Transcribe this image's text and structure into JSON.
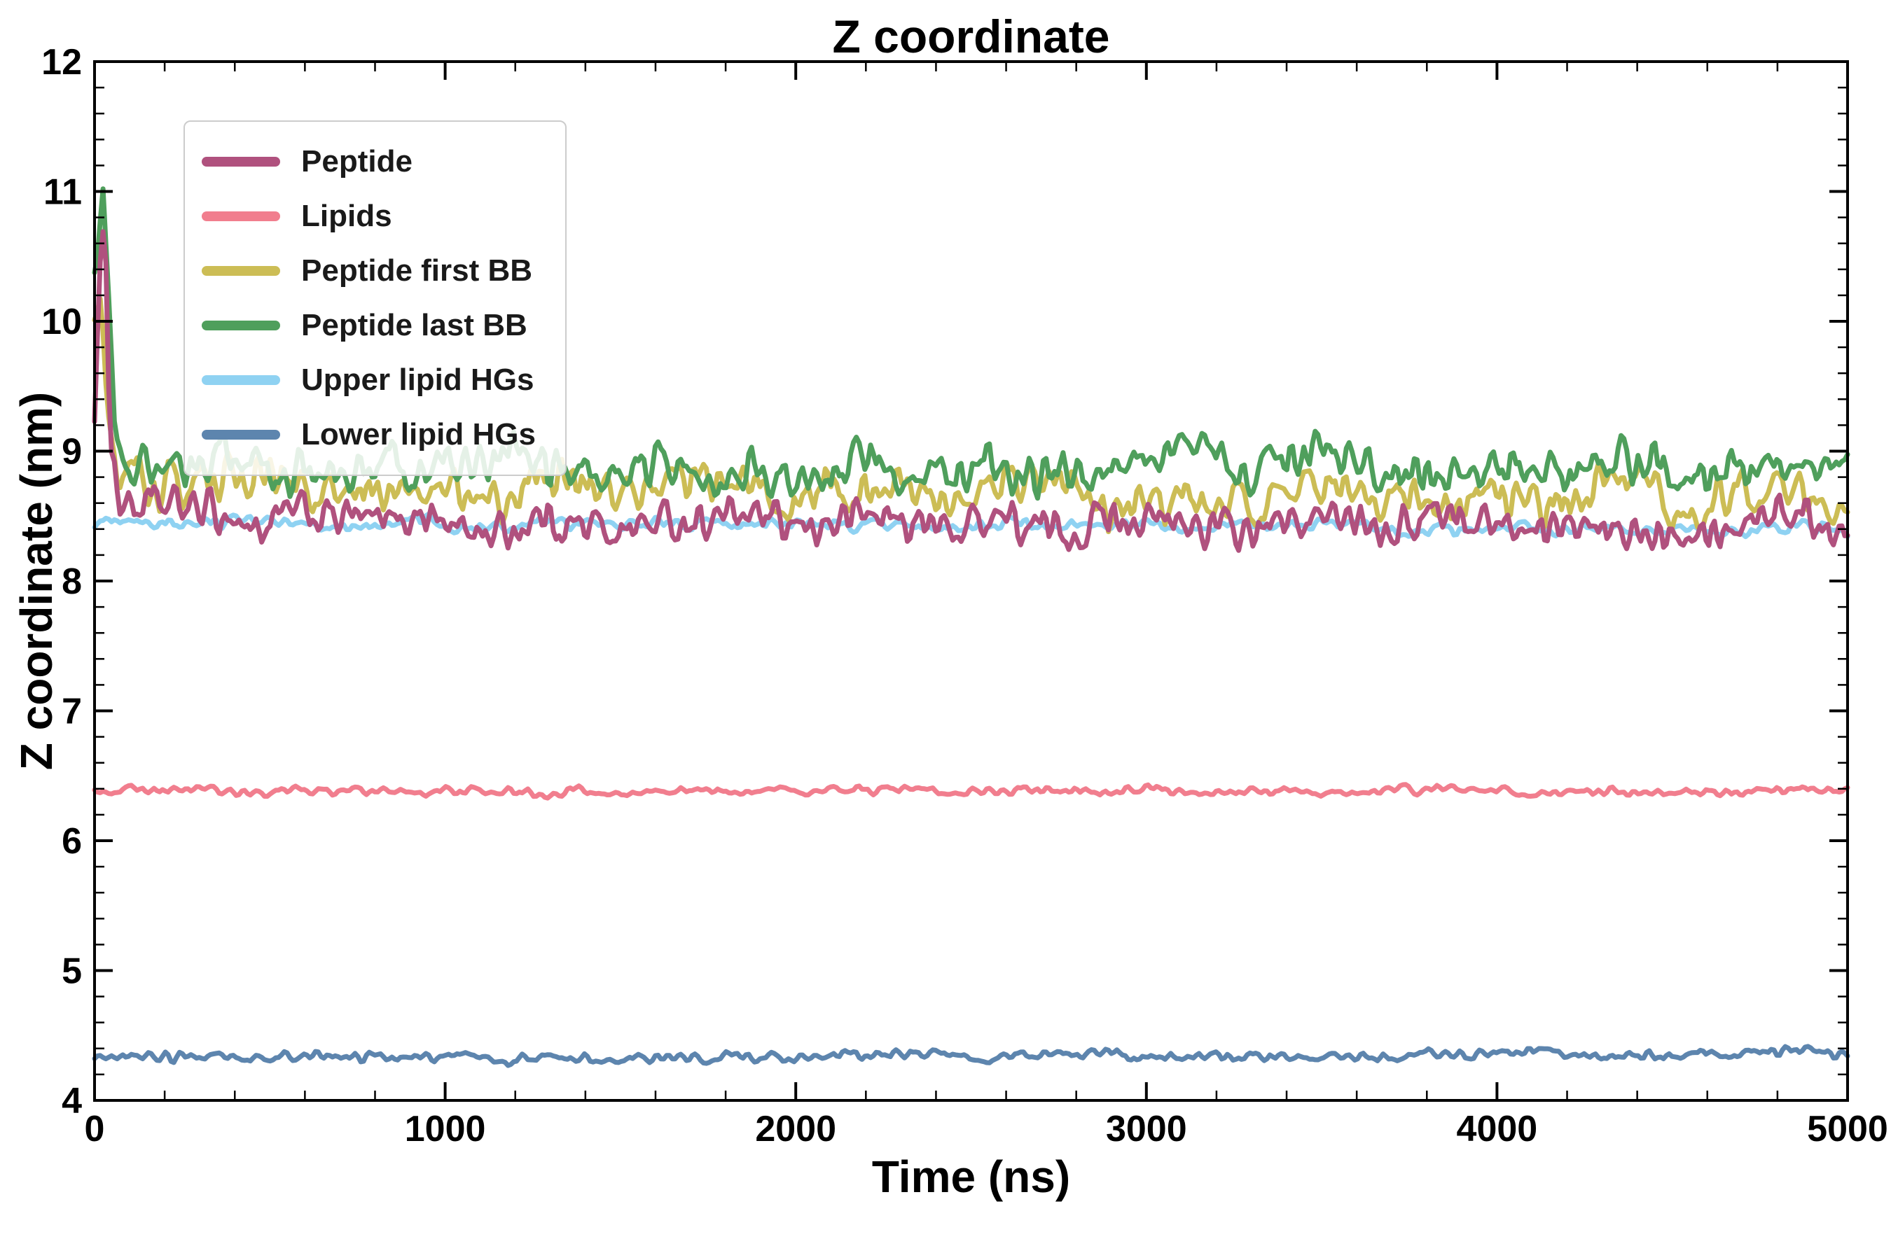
{
  "title": "Z coordinate",
  "axes": {
    "xlabel": "Time (ns)",
    "ylabel": "Z coordinate (nm)"
  },
  "chart_data": {
    "type": "line",
    "title": "Z coordinate",
    "xlabel": "Time (ns)",
    "ylabel": "Z coordinate (nm)",
    "xlim": [
      0,
      5000
    ],
    "ylim": [
      4,
      12
    ],
    "xticks": [
      0,
      1000,
      2000,
      3000,
      4000,
      5000
    ],
    "yticks": [
      4,
      5,
      6,
      7,
      8,
      9,
      10,
      11,
      12
    ],
    "x_minor_step": 200,
    "y_minor_step": 0.2,
    "grid": false,
    "legend_position": "upper left",
    "series": [
      {
        "name": "Peptide",
        "color": "#b0517e",
        "mean": 8.45,
        "noise": 0.12,
        "keypoints": [
          [
            0,
            9.3
          ],
          [
            15,
            10.2
          ],
          [
            30,
            10.75
          ],
          [
            45,
            9.1
          ],
          [
            70,
            8.55
          ],
          [
            120,
            8.5
          ],
          [
            5000,
            8.45
          ]
        ]
      },
      {
        "name": "Lipids",
        "color": "#f17e8e",
        "mean": 6.38,
        "noise": 0.025,
        "keypoints": [
          [
            0,
            6.38
          ],
          [
            5000,
            6.38
          ]
        ]
      },
      {
        "name": "Peptide first BB",
        "color": "#ccbd55",
        "mean": 8.65,
        "noise": 0.13,
        "keypoints": [
          [
            0,
            10.05
          ],
          [
            20,
            10.3
          ],
          [
            45,
            9.0
          ],
          [
            90,
            8.7
          ],
          [
            5000,
            8.65
          ]
        ]
      },
      {
        "name": "Peptide last BB",
        "color": "#4f9f5c",
        "mean": 8.85,
        "noise": 0.13,
        "keypoints": [
          [
            0,
            10.15
          ],
          [
            25,
            10.9
          ],
          [
            55,
            9.3
          ],
          [
            100,
            8.9
          ],
          [
            5000,
            8.85
          ]
        ]
      },
      {
        "name": "Upper lipid HGs",
        "color": "#8fd2f2",
        "mean": 8.4,
        "noise": 0.035,
        "keypoints": [
          [
            0,
            8.45
          ],
          [
            5000,
            8.4
          ]
        ]
      },
      {
        "name": "Lower lipid HGs",
        "color": "#5d85ae",
        "mean": 4.35,
        "noise": 0.03,
        "keypoints": [
          [
            0,
            4.33
          ],
          [
            5000,
            4.35
          ]
        ]
      }
    ]
  }
}
